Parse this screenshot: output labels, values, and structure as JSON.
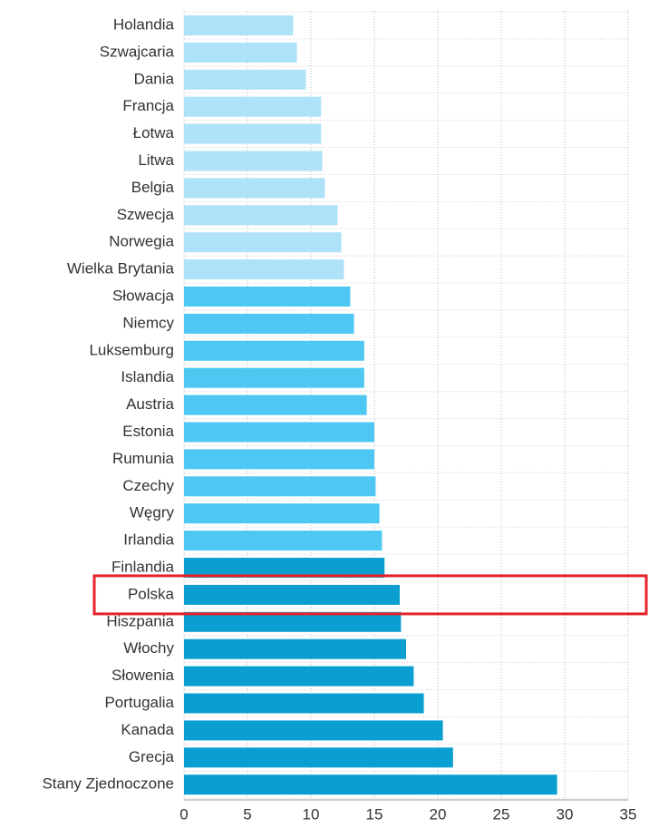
{
  "chart_data": {
    "type": "hbar",
    "categories": [
      "Holandia",
      "Szwajcaria",
      "Dania",
      "Francja",
      "Łotwa",
      "Litwa",
      "Belgia",
      "Szwecja",
      "Norwegia",
      "Wielka Brytania",
      "Słowacja",
      "Niemcy",
      "Luksemburg",
      "Islandia",
      "Austria",
      "Estonia",
      "Rumunia",
      "Czechy",
      "Węgry",
      "Irlandia",
      "Finlandia",
      "Polska",
      "Hiszpania",
      "Włochy",
      "Słowenia",
      "Portugalia",
      "Kanada",
      "Grecja",
      "Stany Zjednoczone"
    ],
    "values": [
      8.6,
      8.9,
      9.6,
      10.8,
      10.8,
      10.9,
      11.1,
      12.1,
      12.4,
      12.6,
      13.1,
      13.4,
      14.2,
      14.2,
      14.4,
      15.0,
      15.0,
      15.1,
      15.4,
      15.6,
      15.8,
      17.0,
      17.1,
      17.5,
      18.1,
      18.9,
      20.4,
      21.2,
      29.4
    ],
    "colors": [
      "#aee2f8",
      "#aee2f8",
      "#aee2f8",
      "#aee2f8",
      "#aee2f8",
      "#aee2f8",
      "#aee2f8",
      "#aee2f8",
      "#aee2f8",
      "#aee2f8",
      "#4ec8f2",
      "#4ec8f2",
      "#4ec8f2",
      "#4ec8f2",
      "#4ec8f2",
      "#4ec8f2",
      "#4ec8f2",
      "#4ec8f2",
      "#4ec8f2",
      "#4ec8f2",
      "#0b9fd1",
      "#0b9fd1",
      "#0b9fd1",
      "#0b9fd1",
      "#0b9fd1",
      "#0b9fd1",
      "#0b9fd1",
      "#0b9fd1",
      "#0b9fd1"
    ],
    "xlim": [
      0,
      35
    ],
    "xticks": [
      0,
      5,
      10,
      15,
      20,
      25,
      30,
      35
    ],
    "grid": true,
    "highlight": "Polska",
    "highlight_color": "#e4232b"
  }
}
